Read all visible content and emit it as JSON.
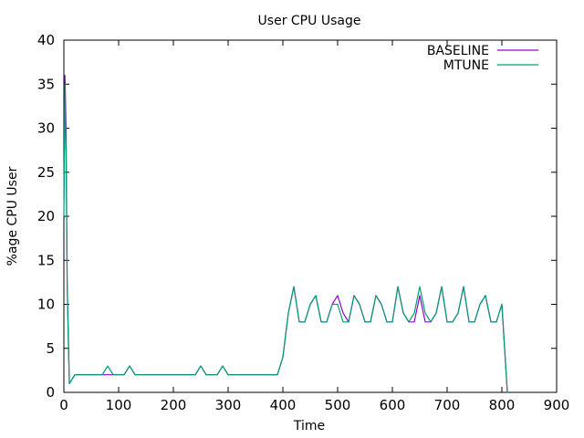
{
  "chart_data": {
    "type": "line",
    "title": "User CPU Usage",
    "xlabel": "Time",
    "ylabel": "%age CPU User",
    "xlim": [
      0,
      900
    ],
    "ylim": [
      0,
      40
    ],
    "xticks": [
      0,
      100,
      200,
      300,
      400,
      500,
      600,
      700,
      800,
      900
    ],
    "yticks": [
      0,
      5,
      10,
      15,
      20,
      25,
      30,
      35,
      40
    ],
    "grid": false,
    "legend_position": "top-right",
    "series": [
      {
        "name": "BASELINE",
        "color": "#9400d3",
        "x": [
          0,
          2,
          4,
          6,
          8,
          10,
          20,
          30,
          40,
          50,
          60,
          70,
          80,
          90,
          100,
          110,
          120,
          130,
          140,
          150,
          160,
          170,
          180,
          190,
          200,
          210,
          220,
          230,
          240,
          250,
          260,
          270,
          280,
          290,
          300,
          310,
          320,
          330,
          340,
          350,
          360,
          370,
          380,
          390,
          400,
          410,
          420,
          430,
          440,
          450,
          460,
          470,
          480,
          490,
          500,
          510,
          520,
          530,
          540,
          550,
          560,
          570,
          580,
          590,
          600,
          610,
          620,
          630,
          640,
          650,
          660,
          670,
          680,
          690,
          700,
          710,
          720,
          730,
          740,
          750,
          760,
          770,
          780,
          790,
          800,
          810
        ],
        "y": [
          22,
          36,
          30,
          12,
          7,
          1,
          2,
          2,
          2,
          2,
          2,
          2,
          2,
          2,
          2,
          2,
          3,
          2,
          2,
          2,
          2,
          2,
          2,
          2,
          2,
          2,
          2,
          2,
          2,
          3,
          2,
          2,
          2,
          3,
          2,
          2,
          2,
          2,
          2,
          2,
          2,
          2,
          2,
          2,
          4,
          9,
          12,
          8,
          8,
          10,
          11,
          8,
          8,
          10,
          11,
          9,
          8,
          11,
          10,
          8,
          8,
          11,
          10,
          8,
          8,
          12,
          9,
          8,
          8,
          11,
          8,
          8,
          9,
          12,
          8,
          8,
          9,
          12,
          8,
          8,
          10,
          11,
          8,
          8,
          10,
          0
        ]
      },
      {
        "name": "MTUNE",
        "color": "#009e73",
        "x": [
          0,
          2,
          4,
          6,
          8,
          10,
          20,
          30,
          40,
          50,
          60,
          70,
          80,
          90,
          100,
          110,
          120,
          130,
          140,
          150,
          160,
          170,
          180,
          190,
          200,
          210,
          220,
          230,
          240,
          250,
          260,
          270,
          280,
          290,
          300,
          310,
          320,
          330,
          340,
          350,
          360,
          370,
          380,
          390,
          400,
          410,
          420,
          430,
          440,
          450,
          460,
          470,
          480,
          490,
          500,
          510,
          520,
          530,
          540,
          550,
          560,
          570,
          580,
          590,
          600,
          610,
          620,
          630,
          640,
          650,
          660,
          670,
          680,
          690,
          700,
          710,
          720,
          730,
          740,
          750,
          760,
          770,
          780,
          790,
          800,
          810
        ],
        "y": [
          20,
          35,
          27,
          13,
          6,
          1,
          2,
          2,
          2,
          2,
          2,
          2,
          3,
          2,
          2,
          2,
          3,
          2,
          2,
          2,
          2,
          2,
          2,
          2,
          2,
          2,
          2,
          2,
          2,
          3,
          2,
          2,
          2,
          3,
          2,
          2,
          2,
          2,
          2,
          2,
          2,
          2,
          2,
          2,
          4,
          9,
          12,
          8,
          8,
          10,
          11,
          8,
          8,
          10,
          10,
          8,
          8,
          11,
          10,
          8,
          8,
          11,
          10,
          8,
          8,
          12,
          9,
          8,
          9,
          12,
          9,
          8,
          9,
          12,
          8,
          8,
          9,
          12,
          8,
          8,
          10,
          11,
          8,
          8,
          10,
          0
        ]
      }
    ]
  }
}
